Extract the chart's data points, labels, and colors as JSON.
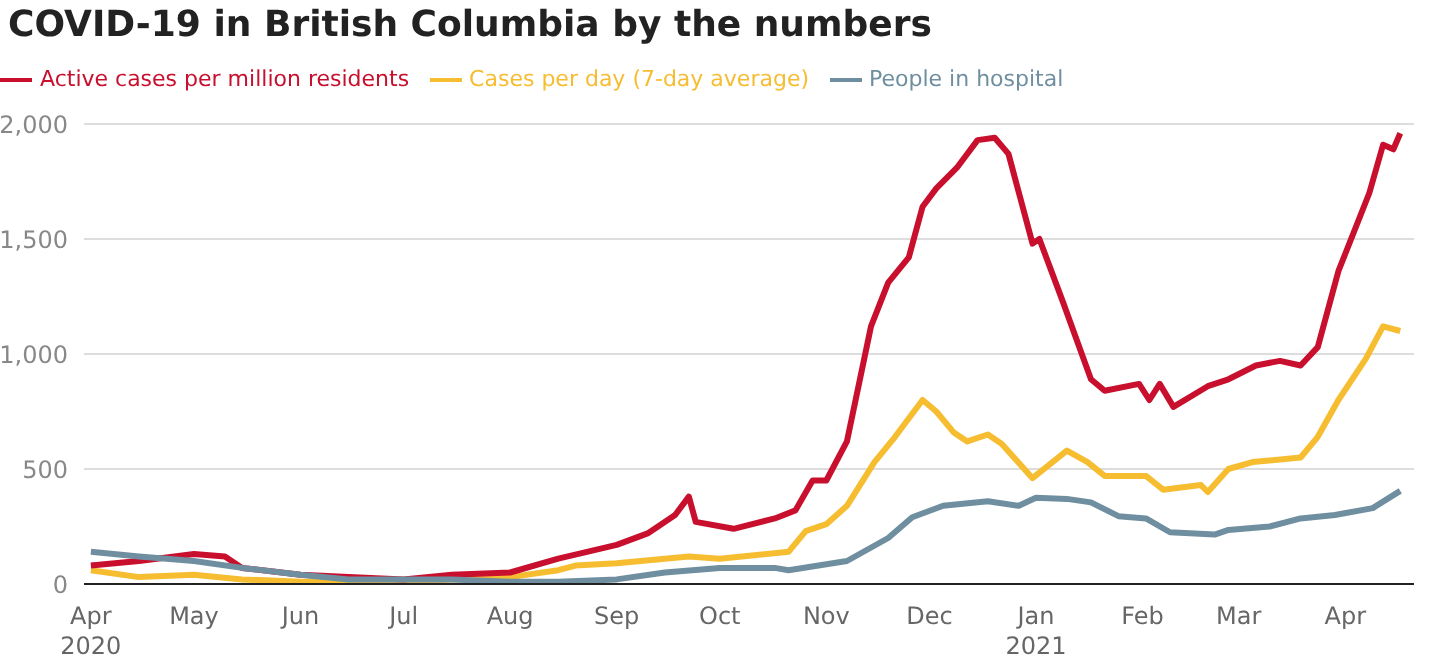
{
  "chart_data": {
    "type": "line",
    "title": "COVID-19 in British Columbia by the numbers",
    "xlim": [
      "2020-03-30",
      "2021-04-21"
    ],
    "xticks": [
      {
        "value": "2020-04-01",
        "label": "Apr\n2020"
      },
      {
        "value": "2020-05-01",
        "label": "May"
      },
      {
        "value": "2020-06-01",
        "label": "Jun"
      },
      {
        "value": "2020-07-01",
        "label": "Jul"
      },
      {
        "value": "2020-08-01",
        "label": "Aug"
      },
      {
        "value": "2020-09-01",
        "label": "Sep"
      },
      {
        "value": "2020-10-01",
        "label": "Oct"
      },
      {
        "value": "2020-11-01",
        "label": "Nov"
      },
      {
        "value": "2020-12-01",
        "label": "Dec"
      },
      {
        "value": "2021-01-01",
        "label": "Jan\n2021"
      },
      {
        "value": "2021-02-01",
        "label": "Feb"
      },
      {
        "value": "2021-03-01",
        "label": "Mar"
      },
      {
        "value": "2021-04-01",
        "label": "Apr"
      }
    ],
    "ylim": [
      0,
      2000
    ],
    "yticks": [
      0,
      {
        "value": 500,
        "label": "500"
      },
      {
        "value": 1000,
        "label": "1,000"
      },
      {
        "value": 1500,
        "label": "1,500"
      },
      {
        "value": 2000,
        "label": "2,000"
      }
    ],
    "grid": "y",
    "legend": "top left",
    "marker": "none",
    "line_style": "solid",
    "series": [
      {
        "name": "Cases per day (7-day average)",
        "color": "#f6bd31",
        "x": [
          "2020-04-01",
          "2020-04-15",
          "2020-05-01",
          "2020-05-15",
          "2020-06-01",
          "2020-07-01",
          "2020-07-15",
          "2020-08-01",
          "2020-08-15",
          "2020-08-20",
          "2020-09-01",
          "2020-09-15",
          "2020-09-22",
          "2020-10-01",
          "2020-10-21",
          "2020-10-26",
          "2020-11-01",
          "2020-11-07",
          "2020-11-15",
          "2020-11-21",
          "2020-11-29",
          "2020-12-03",
          "2020-12-08",
          "2020-12-12",
          "2020-12-18",
          "2020-12-22",
          "2020-12-31",
          "2021-01-10",
          "2021-01-16",
          "2021-01-21",
          "2021-02-02",
          "2021-02-07",
          "2021-02-18",
          "2021-02-20",
          "2021-02-26",
          "2021-03-05",
          "2021-03-19",
          "2021-03-24",
          "2021-03-30",
          "2021-04-07",
          "2021-04-12",
          "2021-04-17"
        ],
        "values": [
          60,
          30,
          40,
          20,
          10,
          10,
          20,
          30,
          60,
          80,
          90,
          110,
          120,
          110,
          140,
          230,
          260,
          340,
          530,
          640,
          800,
          750,
          660,
          620,
          650,
          610,
          460,
          580,
          530,
          470,
          470,
          410,
          430,
          400,
          500,
          530,
          550,
          640,
          800,
          980,
          1120,
          1100
        ]
      },
      {
        "name": "Active cases per million residents",
        "color": "#c8102e",
        "x": [
          "2020-04-01",
          "2020-04-15",
          "2020-05-01",
          "2020-05-10",
          "2020-05-15",
          "2020-06-01",
          "2020-06-15",
          "2020-07-01",
          "2020-07-15",
          "2020-08-01",
          "2020-08-15",
          "2020-09-01",
          "2020-09-10",
          "2020-09-18",
          "2020-09-22",
          "2020-09-24",
          "2020-10-05",
          "2020-10-17",
          "2020-10-23",
          "2020-10-28",
          "2020-11-01",
          "2020-11-07",
          "2020-11-14",
          "2020-11-19",
          "2020-11-25",
          "2020-11-29",
          "2020-12-03",
          "2020-12-09",
          "2020-12-15",
          "2020-12-20",
          "2020-12-24",
          "2020-12-31",
          "2021-01-02",
          "2021-01-09",
          "2021-01-17",
          "2021-01-21",
          "2021-01-31",
          "2021-02-03",
          "2021-02-06",
          "2021-02-10",
          "2021-02-20",
          "2021-02-26",
          "2021-03-06",
          "2021-03-13",
          "2021-03-19",
          "2021-03-24",
          "2021-03-30",
          "2021-04-08",
          "2021-04-12",
          "2021-04-15",
          "2021-04-17"
        ],
        "values": [
          80,
          100,
          130,
          120,
          70,
          40,
          30,
          20,
          40,
          50,
          110,
          170,
          220,
          300,
          380,
          270,
          240,
          285,
          320,
          450,
          450,
          620,
          1120,
          1310,
          1420,
          1640,
          1720,
          1810,
          1930,
          1940,
          1870,
          1480,
          1500,
          1220,
          890,
          840,
          870,
          800,
          870,
          770,
          860,
          890,
          950,
          970,
          950,
          1030,
          1360,
          1700,
          1910,
          1890,
          1960
        ]
      },
      {
        "name": "People in hospital",
        "color": "#6f8fa1",
        "x": [
          "2020-04-01",
          "2020-04-15",
          "2020-05-01",
          "2020-05-15",
          "2020-06-01",
          "2020-06-15",
          "2020-07-01",
          "2020-07-15",
          "2020-08-01",
          "2020-08-15",
          "2020-09-01",
          "2020-09-15",
          "2020-10-01",
          "2020-10-17",
          "2020-10-21",
          "2020-11-07",
          "2020-11-19",
          "2020-11-26",
          "2020-12-05",
          "2020-12-18",
          "2020-12-27",
          "2021-01-01",
          "2021-01-10",
          "2021-01-17",
          "2021-01-25",
          "2021-02-02",
          "2021-02-09",
          "2021-02-22",
          "2021-02-26",
          "2021-03-10",
          "2021-03-19",
          "2021-03-29",
          "2021-04-09",
          "2021-04-17"
        ],
        "values": [
          140,
          120,
          100,
          70,
          40,
          20,
          20,
          20,
          10,
          10,
          20,
          50,
          70,
          70,
          60,
          100,
          200,
          290,
          340,
          360,
          340,
          375,
          370,
          355,
          295,
          285,
          225,
          215,
          235,
          250,
          285,
          300,
          330,
          405
        ]
      }
    ]
  }
}
